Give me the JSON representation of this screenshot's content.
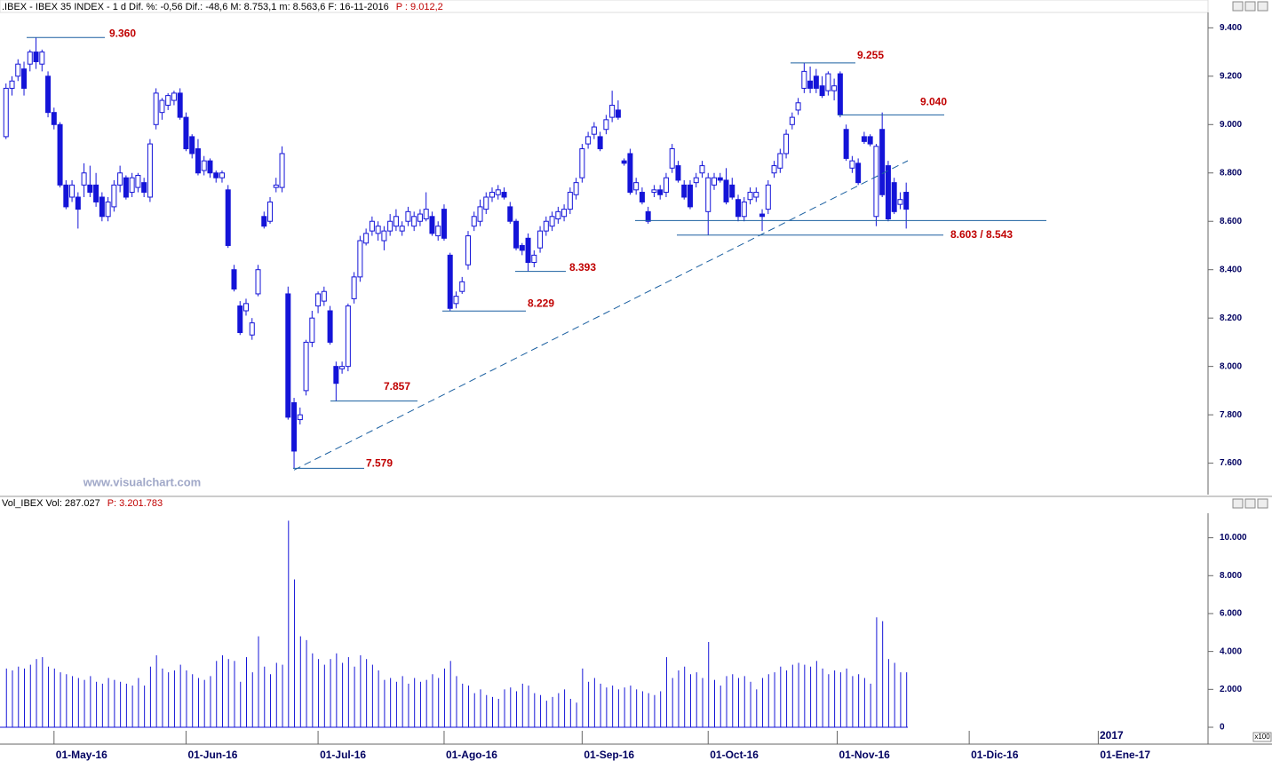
{
  "chart_data": [
    {
      "type": "candlestick",
      "title": ".IBEX - IBEX 35 INDEX -  1 d Dif. %: -0,56  Dif.: -48,6  M: 8.753,1  m: 8.563,6  F: 16-11-2016",
      "subtitle": "P : 9.012,2",
      "watermark": "www.visualchart.com",
      "color": "#1414d8",
      "xlim": [
        -1,
        200
      ],
      "ylim": [
        7470,
        9460
      ],
      "yticks": [
        {
          "value": 7600,
          "label": "7.600"
        },
        {
          "value": 7800,
          "label": "7.800"
        },
        {
          "value": 8000,
          "label": "8.000"
        },
        {
          "value": 8200,
          "label": "8.200"
        },
        {
          "value": 8400,
          "label": "8.400"
        },
        {
          "value": 8600,
          "label": "8.600"
        },
        {
          "value": 8800,
          "label": "8.800"
        },
        {
          "value": 9000,
          "label": "9.000"
        },
        {
          "value": 9200,
          "label": "9.200"
        },
        {
          "value": 9400,
          "label": "9.400"
        }
      ],
      "annotations": [
        {
          "label": "9.360",
          "values": [
            9360
          ]
        },
        {
          "label": "9.255",
          "values": [
            9255
          ]
        },
        {
          "label": "9.040",
          "values": [
            9040
          ]
        },
        {
          "label": "8.603 / 8.543",
          "values": [
            8603,
            8543
          ]
        },
        {
          "label": "8.393",
          "values": [
            8393
          ]
        },
        {
          "label": "8.229",
          "values": [
            8229
          ]
        },
        {
          "label": "7.857",
          "values": [
            7857
          ]
        },
        {
          "label": "7.579",
          "values": [
            7579
          ]
        }
      ],
      "candles": [
        [
          8950,
          9170,
          8940,
          9150
        ],
        [
          9150,
          9200,
          9120,
          9180
        ],
        [
          9200,
          9270,
          9180,
          9250
        ],
        [
          9230,
          9260,
          9120,
          9150
        ],
        [
          9250,
          9310,
          9220,
          9300
        ],
        [
          9300,
          9360,
          9230,
          9260
        ],
        [
          9250,
          9310,
          9220,
          9300
        ],
        [
          9200,
          9220,
          9030,
          9050
        ],
        [
          9050,
          9070,
          8980,
          9000
        ],
        [
          9000,
          9010,
          8740,
          8750
        ],
        [
          8750,
          8770,
          8650,
          8660
        ],
        [
          8700,
          8770,
          8680,
          8750
        ],
        [
          8700,
          8720,
          8570,
          8650
        ],
        [
          8750,
          8840,
          8700,
          8800
        ],
        [
          8750,
          8830,
          8700,
          8720
        ],
        [
          8750,
          8800,
          8660,
          8680
        ],
        [
          8700,
          8720,
          8600,
          8620
        ],
        [
          8620,
          8700,
          8600,
          8680
        ],
        [
          8660,
          8770,
          8640,
          8750
        ],
        [
          8750,
          8830,
          8720,
          8800
        ],
        [
          8780,
          8790,
          8690,
          8700
        ],
        [
          8720,
          8800,
          8700,
          8780
        ],
        [
          8740,
          8800,
          8720,
          8790
        ],
        [
          8760,
          8780,
          8700,
          8720
        ],
        [
          8700,
          8940,
          8680,
          8920
        ],
        [
          9000,
          9150,
          8980,
          9130
        ],
        [
          9050,
          9110,
          9020,
          9100
        ],
        [
          9080,
          9130,
          9060,
          9120
        ],
        [
          9100,
          9140,
          9080,
          9130
        ],
        [
          9130,
          9150,
          9020,
          9030
        ],
        [
          9030,
          9050,
          8890,
          8900
        ],
        [
          8950,
          8960,
          8860,
          8880
        ],
        [
          8900,
          8940,
          8790,
          8800
        ],
        [
          8810,
          8870,
          8790,
          8850
        ],
        [
          8850,
          8860,
          8780,
          8800
        ],
        [
          8800,
          8810,
          8760,
          8780
        ],
        [
          8780,
          8810,
          8760,
          8800
        ],
        [
          8730,
          8750,
          8490,
          8500
        ],
        [
          8400,
          8420,
          8310,
          8320
        ],
        [
          8250,
          8270,
          8130,
          8140
        ],
        [
          8230,
          8280,
          8210,
          8260
        ],
        [
          8130,
          8200,
          8110,
          8180
        ],
        [
          8300,
          8420,
          8290,
          8400
        ],
        [
          8620,
          8640,
          8570,
          8580
        ],
        [
          8600,
          8700,
          8590,
          8680
        ],
        [
          8740,
          8780,
          8720,
          8750
        ],
        [
          8740,
          8910,
          8720,
          8880
        ],
        [
          8300,
          8330,
          7780,
          7790
        ],
        [
          7850,
          7870,
          7579,
          7650
        ],
        [
          7780,
          7830,
          7760,
          7800
        ],
        [
          7900,
          8110,
          7880,
          8100
        ],
        [
          8100,
          8230,
          8080,
          8200
        ],
        [
          8250,
          8310,
          8220,
          8300
        ],
        [
          8270,
          8330,
          8250,
          8310
        ],
        [
          8230,
          8250,
          8090,
          8100
        ],
        [
          8000,
          8020,
          7857,
          7930
        ],
        [
          7990,
          8020,
          7970,
          8000
        ],
        [
          8000,
          8260,
          7980,
          8250
        ],
        [
          8280,
          8390,
          8260,
          8370
        ],
        [
          8370,
          8540,
          8350,
          8520
        ],
        [
          8510,
          8570,
          8500,
          8550
        ],
        [
          8560,
          8620,
          8540,
          8600
        ],
        [
          8550,
          8600,
          8520,
          8580
        ],
        [
          8520,
          8580,
          8480,
          8560
        ],
        [
          8560,
          8630,
          8540,
          8600
        ],
        [
          8580,
          8650,
          8560,
          8620
        ],
        [
          8560,
          8600,
          8540,
          8580
        ],
        [
          8600,
          8660,
          8580,
          8640
        ],
        [
          8580,
          8640,
          8560,
          8620
        ],
        [
          8600,
          8650,
          8580,
          8630
        ],
        [
          8610,
          8720,
          8600,
          8650
        ],
        [
          8620,
          8640,
          8540,
          8550
        ],
        [
          8540,
          8600,
          8520,
          8580
        ],
        [
          8650,
          8670,
          8520,
          8530
        ],
        [
          8460,
          8470,
          8229,
          8240
        ],
        [
          8260,
          8310,
          8240,
          8290
        ],
        [
          8310,
          8370,
          8300,
          8350
        ],
        [
          8420,
          8560,
          8400,
          8540
        ],
        [
          8580,
          8640,
          8560,
          8620
        ],
        [
          8600,
          8690,
          8580,
          8660
        ],
        [
          8650,
          8720,
          8630,
          8700
        ],
        [
          8700,
          8740,
          8680,
          8720
        ],
        [
          8710,
          8750,
          8690,
          8730
        ],
        [
          8720,
          8740,
          8690,
          8700
        ],
        [
          8660,
          8680,
          8590,
          8600
        ],
        [
          8600,
          8610,
          8480,
          8490
        ],
        [
          8500,
          8510,
          8460,
          8480
        ],
        [
          8530,
          8550,
          8393,
          8430
        ],
        [
          8430,
          8480,
          8410,
          8460
        ],
        [
          8490,
          8580,
          8470,
          8560
        ],
        [
          8560,
          8620,
          8540,
          8600
        ],
        [
          8580,
          8640,
          8560,
          8620
        ],
        [
          8610,
          8660,
          8590,
          8640
        ],
        [
          8620,
          8670,
          8600,
          8650
        ],
        [
          8650,
          8740,
          8630,
          8720
        ],
        [
          8710,
          8780,
          8690,
          8760
        ],
        [
          8780,
          8920,
          8760,
          8900
        ],
        [
          8920,
          8970,
          8900,
          8950
        ],
        [
          8960,
          9010,
          8940,
          8990
        ],
        [
          8950,
          8970,
          8890,
          8900
        ],
        [
          8980,
          9040,
          8960,
          9020
        ],
        [
          9030,
          9140,
          9010,
          9080
        ],
        [
          9060,
          9100,
          9020,
          9030
        ],
        [
          8850,
          8860,
          8830,
          8840
        ],
        [
          8880,
          8900,
          8710,
          8720
        ],
        [
          8730,
          8780,
          8710,
          8760
        ],
        [
          8720,
          8740,
          8670,
          8680
        ],
        [
          8640,
          8660,
          8590,
          8600
        ],
        [
          8720,
          8750,
          8700,
          8730
        ],
        [
          8730,
          8750,
          8690,
          8710
        ],
        [
          8720,
          8800,
          8700,
          8780
        ],
        [
          8820,
          8920,
          8800,
          8900
        ],
        [
          8830,
          8850,
          8760,
          8770
        ],
        [
          8750,
          8770,
          8690,
          8700
        ],
        [
          8750,
          8770,
          8650,
          8660
        ],
        [
          8760,
          8800,
          8740,
          8780
        ],
        [
          8800,
          8850,
          8780,
          8830
        ],
        [
          8640,
          8800,
          8543,
          8780
        ],
        [
          8750,
          8800,
          8730,
          8780
        ],
        [
          8780,
          8800,
          8760,
          8770
        ],
        [
          8770,
          8820,
          8670,
          8680
        ],
        [
          8750,
          8780,
          8690,
          8700
        ],
        [
          8690,
          8710,
          8600,
          8620
        ],
        [
          8620,
          8700,
          8600,
          8680
        ],
        [
          8690,
          8740,
          8670,
          8720
        ],
        [
          8700,
          8740,
          8680,
          8720
        ],
        [
          8630,
          8650,
          8560,
          8620
        ],
        [
          8650,
          8770,
          8630,
          8750
        ],
        [
          8800,
          8850,
          8780,
          8830
        ],
        [
          8820,
          8900,
          8800,
          8880
        ],
        [
          8880,
          8980,
          8860,
          8960
        ],
        [
          9000,
          9050,
          8980,
          9030
        ],
        [
          9060,
          9110,
          9040,
          9090
        ],
        [
          9150,
          9255,
          9130,
          9220
        ],
        [
          9180,
          9240,
          9130,
          9150
        ],
        [
          9200,
          9230,
          9130,
          9150
        ],
        [
          9160,
          9200,
          9110,
          9120
        ],
        [
          9140,
          9220,
          9120,
          9210
        ],
        [
          9140,
          9190,
          9100,
          9160
        ],
        [
          9210,
          9220,
          9030,
          9040
        ],
        [
          8980,
          9000,
          8850,
          8860
        ],
        [
          8820,
          8870,
          8800,
          8850
        ],
        [
          8840,
          8860,
          8750,
          8760
        ],
        [
          8950,
          8970,
          8920,
          8930
        ],
        [
          8950,
          8960,
          8910,
          8920
        ],
        [
          8620,
          8920,
          8580,
          8910
        ],
        [
          8980,
          9050,
          8700,
          8710
        ],
        [
          8830,
          8850,
          8600,
          8610
        ],
        [
          8760,
          8780,
          8630,
          8640
        ],
        [
          8670,
          8720,
          8650,
          8690
        ],
        [
          8720,
          8760,
          8570,
          8650
        ]
      ]
    },
    {
      "type": "bar",
      "title": "Vol_IBEX Vol: 287.027",
      "subtitle": "P: 3.201.783",
      "annotation": "2017",
      "unit_label": "x100",
      "color": "#1414d8",
      "xlim": [
        -1,
        200
      ],
      "ylim": [
        0,
        11200
      ],
      "yticks": [
        0,
        {
          "value": 2000,
          "label": "2.000"
        },
        {
          "value": 4000,
          "label": "4.000"
        },
        {
          "value": 6000,
          "label": "6.000"
        },
        {
          "value": 8000,
          "label": "8.000"
        },
        {
          "value": 10000,
          "label": "10.000"
        }
      ],
      "xticks": [
        {
          "value": 8,
          "label": "01-May-16"
        },
        {
          "value": 30,
          "label": "01-Jun-16"
        },
        {
          "value": 52,
          "label": "01-Jul-16"
        },
        {
          "value": 73,
          "label": "01-Ago-16"
        },
        {
          "value": 96,
          "label": "01-Sep-16"
        },
        {
          "value": 117,
          "label": "01-Oct-16"
        },
        {
          "value": 138.5,
          "label": "01-Nov-16"
        },
        {
          "value": 160.5,
          "label": "01-Dic-16"
        },
        {
          "value": 182,
          "label": "01-Ene-17"
        }
      ],
      "values": [
        3100,
        3000,
        3200,
        3100,
        3300,
        3600,
        3700,
        3200,
        3100,
        2900,
        2800,
        2700,
        2600,
        2500,
        2700,
        2400,
        2300,
        2600,
        2500,
        2400,
        2300,
        2200,
        2600,
        2200,
        3200,
        3800,
        3100,
        2900,
        3000,
        3300,
        3000,
        2800,
        2600,
        2500,
        2700,
        3500,
        3800,
        3600,
        3500,
        2400,
        3700,
        2900,
        4800,
        3200,
        2800,
        3400,
        3300,
        10900,
        7800,
        4800,
        4600,
        3900,
        3600,
        3300,
        3600,
        3900,
        3400,
        3700,
        3200,
        3800,
        3600,
        3300,
        3000,
        2500,
        2600,
        2400,
        2700,
        2300,
        2600,
        2400,
        2500,
        2800,
        2600,
        3100,
        3500,
        2700,
        2300,
        2200,
        1800,
        2000,
        1700,
        1600,
        1500,
        2000,
        2100,
        1900,
        2300,
        2200,
        1800,
        1700,
        1400,
        1600,
        1800,
        2000,
        1500,
        1300,
        3100,
        2400,
        2600,
        2300,
        2100,
        2200,
        2000,
        2100,
        2200,
        2000,
        1900,
        1800,
        1700,
        1900,
        3700,
        2600,
        3000,
        3200,
        2800,
        2900,
        2600,
        4500,
        2500,
        2200,
        2700,
        2800,
        2600,
        2700,
        2400,
        2000,
        2600,
        2800,
        2900,
        3200,
        3000,
        3300,
        3400,
        3300,
        3200,
        3500,
        3100,
        2800,
        3000,
        2900,
        3100,
        2700,
        2800,
        2600,
        2300,
        5800,
        5600,
        3600,
        3400,
        2900,
        2900
      ]
    }
  ]
}
